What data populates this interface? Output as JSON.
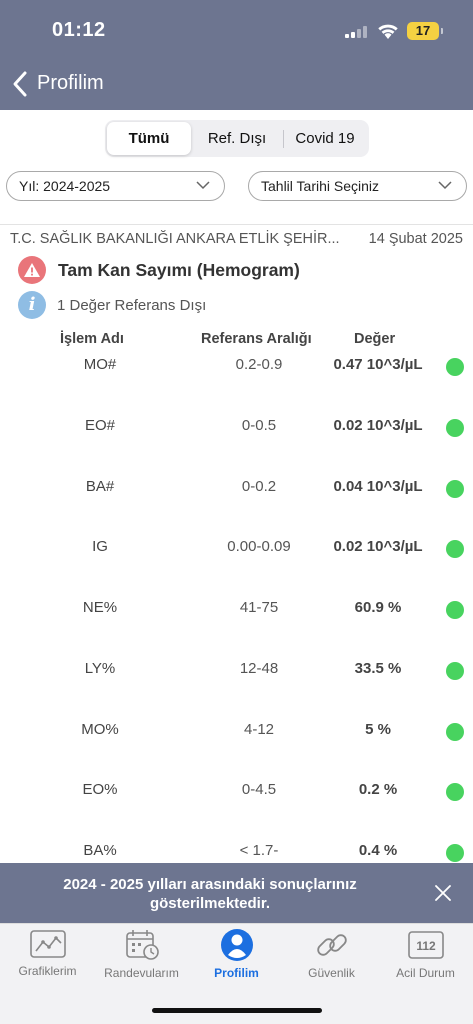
{
  "status_bar": {
    "time": "01:12",
    "battery": "17"
  },
  "nav": {
    "title": "Profilim"
  },
  "segments": [
    {
      "label": "Tümü",
      "active": true
    },
    {
      "label": "Ref. Dışı",
      "active": false
    },
    {
      "label": "Covid 19",
      "active": false
    }
  ],
  "filters": {
    "year": "Yıl: 2024-2025",
    "date": "Tahlil Tarihi Seçiniz"
  },
  "result": {
    "hospital": "T.C. SAĞLIK BAKANLIĞI ANKARA ETLİK ŞEHİR...",
    "date": "14 Şubat 2025",
    "test_name": "Tam Kan Sayımı (Hemogram)",
    "info": "1 Değer Referans Dışı"
  },
  "table": {
    "headers": {
      "name": "İşlem Adı",
      "ref": "Referans Aralığı",
      "value": "Değer"
    },
    "rows": [
      {
        "name": "MO#",
        "ref": "0.2-0.9",
        "value": "0.47 10^3/µL",
        "status_color": "#48d35f"
      },
      {
        "name": "EO#",
        "ref": "0-0.5",
        "value": "0.02 10^3/µL",
        "status_color": "#48d35f"
      },
      {
        "name": "BA#",
        "ref": "0-0.2",
        "value": "0.04 10^3/µL",
        "status_color": "#48d35f"
      },
      {
        "name": "IG",
        "ref": "0.00-0.09",
        "value": "0.02 10^3/µL",
        "status_color": "#48d35f"
      },
      {
        "name": "NE%",
        "ref": "41-75",
        "value": "60.9 %",
        "status_color": "#48d35f"
      },
      {
        "name": "LY%",
        "ref": "12-48",
        "value": "33.5 %",
        "status_color": "#48d35f"
      },
      {
        "name": "MO%",
        "ref": "4-12",
        "value": "5 %",
        "status_color": "#48d35f"
      },
      {
        "name": "EO%",
        "ref": "0-4.5",
        "value": "0.2 %",
        "status_color": "#48d35f"
      },
      {
        "name": "BA%",
        "ref": "< 1.7-",
        "value": "0.4 %",
        "status_color": "#48d35f"
      }
    ]
  },
  "toast": {
    "message": "2024 - 2025 yılları arasındaki sonuçlarınız gösterilmektedir."
  },
  "tabs": [
    {
      "label": "Grafiklerim",
      "icon": "chart-icon",
      "active": false
    },
    {
      "label": "Randevularım",
      "icon": "calendar-clock-icon",
      "active": false
    },
    {
      "label": "Profilim",
      "icon": "profile-icon",
      "active": true
    },
    {
      "label": "Güvenlik",
      "icon": "link-icon",
      "active": false
    },
    {
      "label": "Acil Durum",
      "icon": "emergency-112-icon",
      "active": false
    }
  ],
  "tab_112": "112",
  "colors": {
    "header": "#6d7590",
    "accent": "#1c6fe0",
    "ok": "#48d35f",
    "warning": "#e9757a",
    "info": "#8fbde4"
  }
}
